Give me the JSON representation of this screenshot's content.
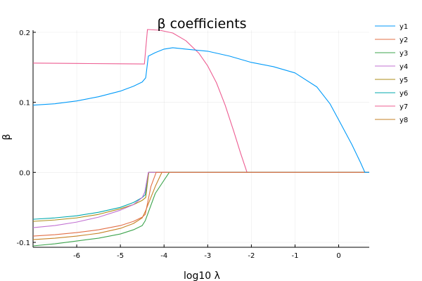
{
  "chart_data": {
    "type": "line",
    "title": "β coefficients",
    "xlabel": "log10 λ",
    "ylabel": "β",
    "xlim": [
      -7,
      0.7
    ],
    "ylim": [
      -0.107,
      0.203
    ],
    "xticks": [
      -6,
      -5,
      -4,
      -3,
      -2,
      -1,
      0
    ],
    "xtick_labels": [
      "-6",
      "-5",
      "-4",
      "-3",
      "-2",
      "-1",
      "0"
    ],
    "yticks": [
      -0.1,
      0.0,
      0.1,
      0.2
    ],
    "ytick_labels": [
      "-0.1",
      "0.0",
      "0.1",
      "0.2"
    ],
    "grid": true,
    "legend_position": "top-right",
    "series": [
      {
        "name": "y1",
        "color": "#009af9",
        "points": [
          [
            -7,
            0.096
          ],
          [
            -6.5,
            0.098
          ],
          [
            -6,
            0.102
          ],
          [
            -5.5,
            0.108
          ],
          [
            -5,
            0.116
          ],
          [
            -4.7,
            0.123
          ],
          [
            -4.5,
            0.129
          ],
          [
            -4.42,
            0.135
          ],
          [
            -4.36,
            0.166
          ],
          [
            -4.2,
            0.171
          ],
          [
            -4,
            0.176
          ],
          [
            -3.8,
            0.178
          ],
          [
            -3.5,
            0.176
          ],
          [
            -3,
            0.173
          ],
          [
            -2.5,
            0.166
          ],
          [
            -2,
            0.157
          ],
          [
            -1.5,
            0.151
          ],
          [
            -1,
            0.142
          ],
          [
            -0.5,
            0.122
          ],
          [
            -0.2,
            0.098
          ],
          [
            0,
            0.075
          ],
          [
            0.3,
            0.04
          ],
          [
            0.5,
            0.014
          ],
          [
            0.6,
            0.0
          ],
          [
            0.7,
            0.0
          ]
        ]
      },
      {
        "name": "y2",
        "color": "#e26f46",
        "points": [
          [
            -7,
            -0.091
          ],
          [
            -6.5,
            -0.089
          ],
          [
            -6,
            -0.086
          ],
          [
            -5.5,
            -0.082
          ],
          [
            -5,
            -0.076
          ],
          [
            -4.7,
            -0.07
          ],
          [
            -4.5,
            -0.064
          ],
          [
            -4.43,
            -0.06
          ],
          [
            -4.3,
            -0.02
          ],
          [
            -4.18,
            0.0
          ],
          [
            0.7,
            0.0
          ]
        ]
      },
      {
        "name": "y3",
        "color": "#3da44d",
        "points": [
          [
            -7,
            -0.105
          ],
          [
            -6.5,
            -0.102
          ],
          [
            -6,
            -0.098
          ],
          [
            -5.5,
            -0.094
          ],
          [
            -5,
            -0.088
          ],
          [
            -4.7,
            -0.082
          ],
          [
            -4.5,
            -0.076
          ],
          [
            -4.43,
            -0.069
          ],
          [
            -4.2,
            -0.03
          ],
          [
            -3.88,
            0.0
          ],
          [
            0.7,
            0.0
          ]
        ]
      },
      {
        "name": "y4",
        "color": "#c271d2",
        "points": [
          [
            -7,
            -0.079
          ],
          [
            -6.5,
            -0.076
          ],
          [
            -6,
            -0.071
          ],
          [
            -5.5,
            -0.064
          ],
          [
            -5,
            -0.054
          ],
          [
            -4.7,
            -0.046
          ],
          [
            -4.5,
            -0.036
          ],
          [
            -4.44,
            -0.028
          ],
          [
            -4.36,
            0.0
          ],
          [
            0.7,
            0.0
          ]
        ]
      },
      {
        "name": "y5",
        "color": "#ac8d18",
        "points": [
          [
            -7,
            -0.07
          ],
          [
            -6.5,
            -0.068
          ],
          [
            -6,
            -0.065
          ],
          [
            -5.5,
            -0.06
          ],
          [
            -5,
            -0.052
          ],
          [
            -4.7,
            -0.046
          ],
          [
            -4.5,
            -0.04
          ],
          [
            -4.42,
            -0.036
          ],
          [
            -4.35,
            0.0
          ],
          [
            0.7,
            0.0
          ]
        ]
      },
      {
        "name": "y6",
        "color": "#00a9ad",
        "points": [
          [
            -7,
            -0.067
          ],
          [
            -6.5,
            -0.065
          ],
          [
            -6,
            -0.062
          ],
          [
            -5.5,
            -0.057
          ],
          [
            -5,
            -0.05
          ],
          [
            -4.7,
            -0.043
          ],
          [
            -4.5,
            -0.036
          ],
          [
            -4.43,
            -0.032
          ],
          [
            -4.35,
            0.0
          ],
          [
            0.7,
            0.0
          ]
        ]
      },
      {
        "name": "y7",
        "color": "#ed5d92",
        "points": [
          [
            -7,
            0.156
          ],
          [
            -6,
            0.1555
          ],
          [
            -5,
            0.155
          ],
          [
            -4.45,
            0.1548
          ],
          [
            -4.38,
            0.204
          ],
          [
            -4.1,
            0.203
          ],
          [
            -3.8,
            0.199
          ],
          [
            -3.5,
            0.188
          ],
          [
            -3.2,
            0.17
          ],
          [
            -3,
            0.152
          ],
          [
            -2.8,
            0.128
          ],
          [
            -2.6,
            0.096
          ],
          [
            -2.4,
            0.058
          ],
          [
            -2.25,
            0.028
          ],
          [
            -2.1,
            0.0
          ],
          [
            0.7,
            0.0
          ]
        ]
      },
      {
        "name": "y8",
        "color": "#c68225",
        "points": [
          [
            -7,
            -0.096
          ],
          [
            -6.5,
            -0.094
          ],
          [
            -6,
            -0.091
          ],
          [
            -5.5,
            -0.087
          ],
          [
            -5,
            -0.08
          ],
          [
            -4.7,
            -0.073
          ],
          [
            -4.5,
            -0.065
          ],
          [
            -4.43,
            -0.056
          ],
          [
            -4.2,
            -0.02
          ],
          [
            -4.05,
            0.0
          ],
          [
            0.7,
            0.0
          ]
        ]
      }
    ]
  }
}
